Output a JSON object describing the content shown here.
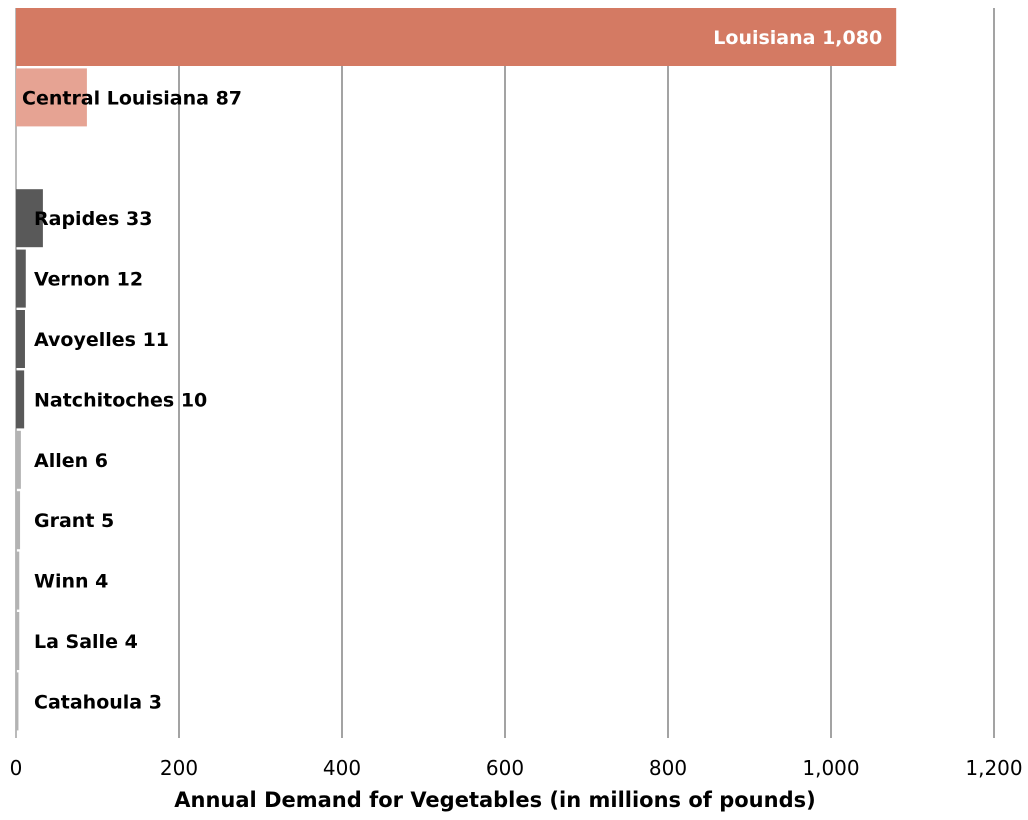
{
  "chart_data": {
    "type": "bar",
    "orientation": "horizontal",
    "categories": [
      "Louisiana",
      "Central Louisiana",
      "",
      "Rapides",
      "Vernon",
      "Avoyelles",
      "Natchitoches",
      "Allen",
      "Grant",
      "Winn",
      "La Salle",
      "Catahoula"
    ],
    "values": [
      1080,
      87,
      null,
      33,
      12,
      11,
      10,
      6,
      5,
      4,
      4,
      3
    ],
    "value_labels": [
      "1,080",
      "87",
      "",
      "33",
      "12",
      "11",
      "10",
      "6",
      "5",
      "4",
      "4",
      "3"
    ],
    "bar_colors": [
      "#d47a63",
      "#e6a393",
      "#ffffff",
      "#595959",
      "#595959",
      "#595959",
      "#595959",
      "#b3b3b3",
      "#b3b3b3",
      "#b3b3b3",
      "#b3b3b3",
      "#b3b3b3"
    ],
    "label_inside": [
      true,
      false,
      false,
      false,
      false,
      false,
      false,
      false,
      false,
      false,
      false,
      false
    ],
    "xlim": [
      0,
      1200
    ],
    "xticks": [
      0,
      200,
      400,
      600,
      800,
      1000,
      1200
    ],
    "xtick_labels": [
      "0",
      "200",
      "400",
      "600",
      "800",
      "1,000",
      "1,200"
    ],
    "xlabel": "Annual Demand for Vegetables (in millions of pounds)",
    "ylabel": "",
    "title": "",
    "grid": true,
    "legend": "none"
  }
}
